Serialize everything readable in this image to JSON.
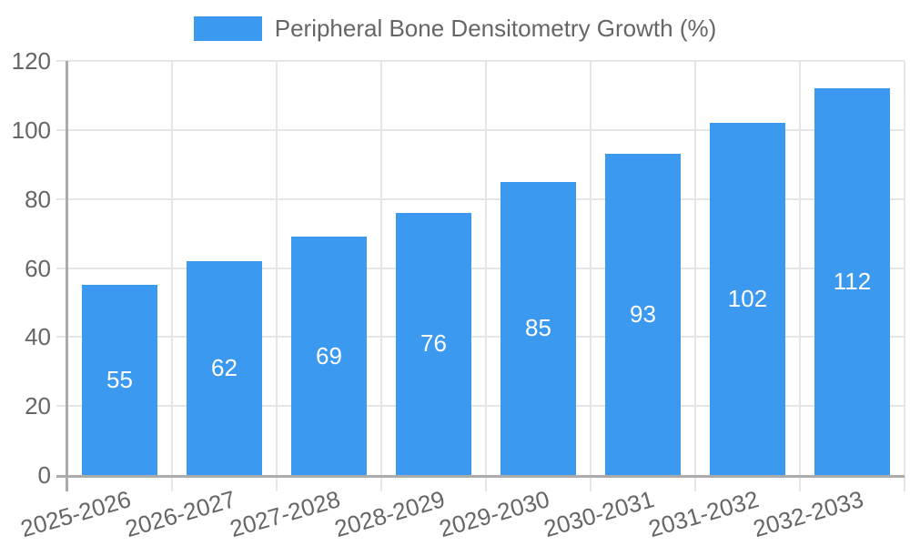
{
  "chart_data": {
    "type": "bar",
    "title": "",
    "legend": "Peripheral Bone Densitometry Growth (%)",
    "legend_position": "top",
    "categories": [
      "2025-2026",
      "2026-2027",
      "2027-2028",
      "2028-2029",
      "2029-2030",
      "2030-2031",
      "2031-2032",
      "2032-2033"
    ],
    "values": [
      55,
      62,
      69,
      76,
      85,
      93,
      102,
      112
    ],
    "xlabel": "",
    "ylabel": "",
    "ylim": [
      0,
      120
    ],
    "yticks": [
      0,
      20,
      40,
      60,
      80,
      100,
      120
    ],
    "grid": true,
    "value_labels": "inside-center",
    "x_label_rotation_deg": -16,
    "colors": {
      "bar": "#3b99f0",
      "value_label": "#ffffff",
      "axis": "#ababab",
      "grid": "#e6e6e6",
      "text": "#666666",
      "background": "#ffffff"
    }
  }
}
